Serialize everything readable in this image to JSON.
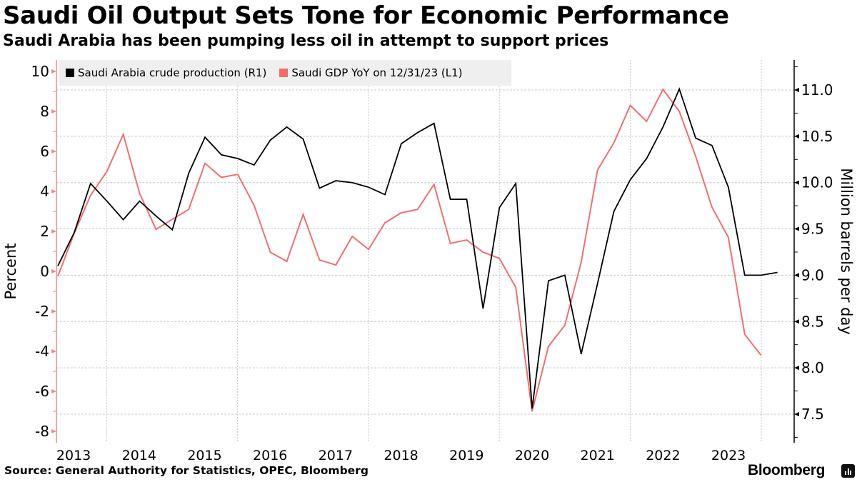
{
  "header": {
    "title": "Saudi Oil Output Sets Tone for Economic Performance",
    "subtitle": "Saudi Arabia has been pumping less oil in attempt to support prices"
  },
  "footer": {
    "source": "Source: General Authority for Statistics, OPEC, Bloomberg",
    "brand": "Bloomberg"
  },
  "colors": {
    "crude": "#000000",
    "gdp": "#f07070",
    "legend_bg": "#efefef",
    "grid": "#c8c8c8",
    "left_axis": "#f08a8a"
  },
  "chart_data": {
    "type": "line",
    "title": "Saudi Oil Output Sets Tone for Economic Performance",
    "subtitle": "Saudi Arabia has been pumping less oil in attempt to support prices",
    "xlabel": "",
    "ylabel_left": "Percent",
    "ylabel_right": "Million barrels per day",
    "x_ticks": [
      "2013",
      "2014",
      "2015",
      "2016",
      "2017",
      "2018",
      "2019",
      "2020",
      "2021",
      "2022",
      "2023"
    ],
    "ylim_left": [
      -8.6,
      10.6
    ],
    "yticks_left": [
      10,
      8,
      6,
      4,
      2,
      0,
      -2,
      -4,
      -6,
      -8
    ],
    "ylim_right": [
      7.2,
      11.4
    ],
    "yticks_right": [
      "11.0",
      "10.5",
      "10.0",
      "9.5",
      "9.0",
      "8.5",
      "8.0",
      "7.5"
    ],
    "grid": true,
    "legend_position": "top-left",
    "x_start": "2013-Q1",
    "frequency": "quarterly",
    "series": [
      {
        "name": "Saudi Arabia crude production (R1)",
        "axis": "right",
        "values": [
          9.1,
          9.46,
          9.99,
          9.8,
          9.6,
          9.8,
          9.64,
          9.49,
          10.1,
          10.49,
          10.3,
          10.26,
          10.19,
          10.46,
          10.6,
          10.47,
          9.94,
          10.02,
          10.0,
          9.95,
          9.87,
          10.42,
          10.54,
          10.64,
          9.82,
          9.82,
          8.64,
          9.73,
          9.99,
          7.56,
          8.94,
          9.0,
          8.15,
          8.91,
          9.69,
          10.03,
          10.26,
          10.6,
          11.01,
          10.48,
          10.4,
          9.95,
          9.0,
          9.0,
          9.03
        ]
      },
      {
        "name": "Saudi GDP YoY on 12/31/23 (L1)",
        "axis": "left",
        "values": [
          -0.25,
          1.9,
          3.8,
          5.0,
          6.85,
          3.9,
          2.1,
          2.6,
          3.1,
          5.4,
          4.7,
          4.85,
          3.3,
          0.95,
          0.5,
          2.85,
          0.57,
          0.32,
          1.75,
          1.1,
          2.43,
          2.93,
          3.1,
          4.35,
          1.4,
          1.57,
          0.96,
          0.65,
          -0.8,
          -7.0,
          -3.75,
          -2.7,
          0.46,
          5.07,
          6.43,
          8.3,
          7.5,
          9.1,
          8.0,
          5.75,
          3.2,
          1.7,
          -3.15,
          -4.2
        ]
      }
    ]
  }
}
